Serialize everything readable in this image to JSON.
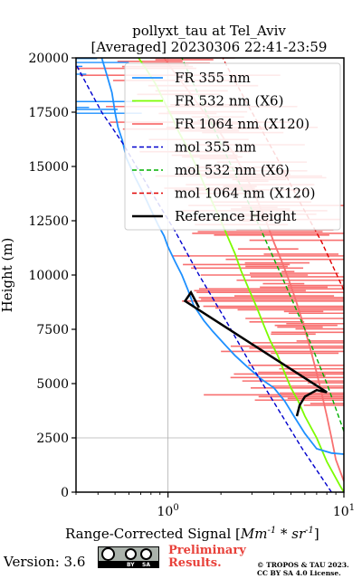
{
  "chart_data": {
    "type": "line",
    "title": "pollyxt_tau at Tel_Aviv",
    "subtitle": "[Averaged] 20230306 22:41-23:59",
    "xlabel": "Range-Corrected Signal [Mm^-1 * sr^-1]",
    "ylabel": "Height (m)",
    "xscale": "log",
    "xlim": [
      0.3,
      10
    ],
    "ylim": [
      0,
      20000
    ],
    "x_ticks": [
      "10^0",
      "10^1"
    ],
    "y_ticks": [
      "0",
      "2500",
      "5000",
      "7500",
      "10000",
      "12500",
      "15000",
      "17500",
      "20000"
    ],
    "grid": true,
    "legend_position": "top-right",
    "series": [
      {
        "name": "FR 355 nm",
        "color": "#1e90ff",
        "style": "solid",
        "points": [
          [
            10,
            1750
          ],
          [
            8.5,
            1800
          ],
          [
            7,
            2000
          ],
          [
            6,
            2700
          ],
          [
            5.2,
            3500
          ],
          [
            4.6,
            4200
          ],
          [
            4,
            4800
          ],
          [
            3.4,
            5200
          ],
          [
            2.8,
            5800
          ],
          [
            2.4,
            6300
          ],
          [
            2.1,
            6800
          ],
          [
            1.8,
            7400
          ],
          [
            1.6,
            7900
          ],
          [
            1.4,
            8600
          ],
          [
            1.3,
            9300
          ],
          [
            1.2,
            10000
          ],
          [
            1.1,
            10600
          ],
          [
            1.0,
            11300
          ],
          [
            0.95,
            11800
          ],
          [
            0.88,
            12300
          ],
          [
            0.8,
            13000
          ],
          [
            0.72,
            13800
          ],
          [
            0.65,
            14500
          ],
          [
            0.58,
            15400
          ],
          [
            0.55,
            16200
          ],
          [
            0.52,
            16800
          ],
          [
            0.5,
            17500
          ],
          [
            0.48,
            18400
          ],
          [
            0.45,
            19200
          ],
          [
            0.42,
            20000
          ]
        ]
      },
      {
        "name": "FR 532 nm (X6)",
        "color": "#7cfc00",
        "style": "solid",
        "points": [
          [
            10,
            0
          ],
          [
            9.5,
            300
          ],
          [
            8,
            1400
          ],
          [
            7,
            2500
          ],
          [
            6,
            3500
          ],
          [
            5.5,
            4200
          ],
          [
            5,
            4800
          ],
          [
            4.6,
            5500
          ],
          [
            4.2,
            6300
          ],
          [
            3.8,
            7000
          ],
          [
            3.5,
            7700
          ],
          [
            3.2,
            8500
          ],
          [
            2.9,
            9300
          ],
          [
            2.6,
            10200
          ],
          [
            2.4,
            11000
          ],
          [
            2.2,
            11700
          ],
          [
            2.0,
            12500
          ],
          [
            1.8,
            13300
          ],
          [
            1.6,
            14200
          ],
          [
            1.45,
            15000
          ],
          [
            1.3,
            15800
          ],
          [
            1.15,
            16600
          ],
          [
            1.05,
            17300
          ],
          [
            0.95,
            18000
          ],
          [
            0.85,
            18800
          ],
          [
            0.75,
            19500
          ],
          [
            0.68,
            20000
          ]
        ]
      },
      {
        "name": "FR 1064 nm (X120)",
        "color": "#f87070",
        "style": "solid",
        "points": [
          [
            10,
            500
          ],
          [
            9,
            1500
          ],
          [
            8.5,
            2500
          ],
          [
            8,
            3500
          ],
          [
            7.5,
            4500
          ],
          [
            7,
            5500
          ],
          [
            6.5,
            6500
          ],
          [
            6,
            7500
          ],
          [
            5.5,
            8500
          ],
          [
            5,
            9500
          ],
          [
            4.5,
            10500
          ],
          [
            4,
            11500
          ],
          [
            3.6,
            12500
          ],
          [
            3.2,
            13500
          ],
          [
            2.8,
            14500
          ],
          [
            2.4,
            15500
          ],
          [
            2.0,
            16500
          ],
          [
            1.6,
            17500
          ],
          [
            1.3,
            18500
          ],
          [
            1.05,
            19500
          ],
          [
            0.95,
            20000
          ]
        ]
      },
      {
        "name": "mol 355 nm",
        "color": "#0000cd",
        "style": "dashed",
        "points": [
          [
            8.5,
            0
          ],
          [
            5.8,
            2000
          ],
          [
            4.1,
            4000
          ],
          [
            2.9,
            6000
          ],
          [
            2.1,
            8000
          ],
          [
            1.5,
            10000
          ],
          [
            1.1,
            12000
          ],
          [
            0.78,
            14000
          ],
          [
            0.56,
            16000
          ],
          [
            0.42,
            17500
          ],
          [
            0.36,
            18500
          ],
          [
            0.3,
            19700
          ]
        ]
      },
      {
        "name": "mol 532 nm (X6)",
        "color": "#00b000",
        "style": "dashed",
        "points": [
          [
            10,
            2800
          ],
          [
            8,
            5000
          ],
          [
            6,
            7500
          ],
          [
            4.4,
            10000
          ],
          [
            3.2,
            12500
          ],
          [
            2.3,
            15000
          ],
          [
            1.65,
            17500
          ],
          [
            1.2,
            20000
          ]
        ]
      },
      {
        "name": "mol 1064 nm (X120)",
        "color": "#e00000",
        "style": "dashed",
        "points": [
          [
            10,
            9300
          ],
          [
            7.5,
            11500
          ],
          [
            5.5,
            13500
          ],
          [
            4.1,
            15500
          ],
          [
            3.0,
            17500
          ],
          [
            2.2,
            19500
          ],
          [
            2.05,
            20000
          ]
        ]
      },
      {
        "name": "Reference Height",
        "color": "#000000",
        "style": "solid",
        "points": [
          [
            5.4,
            3500
          ],
          [
            5.6,
            4000
          ],
          [
            6.0,
            4400
          ],
          [
            7.0,
            4700
          ],
          [
            8.0,
            4600
          ],
          [
            1.25,
            8800
          ],
          [
            1.35,
            9200
          ],
          [
            1.5,
            8500
          ]
        ]
      }
    ]
  },
  "footer": {
    "version": "Version: 3.6",
    "cc_label_1": "BY",
    "cc_label_2": "SA",
    "prelim_line1": "Preliminary",
    "prelim_line2": "Results.",
    "copyright_line1": "© TROPOS & TAU 2023.",
    "copyright_line2": "CC BY SA 4.0 License."
  }
}
